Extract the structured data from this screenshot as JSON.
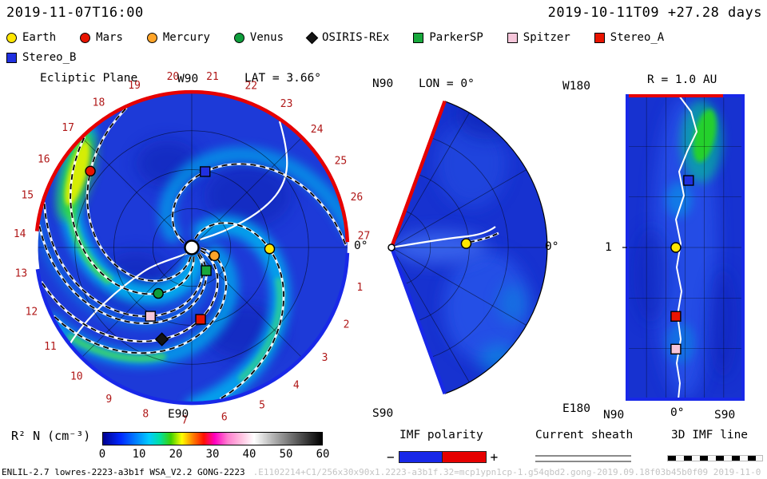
{
  "header": {
    "current_time": "2019-11-07T16:00",
    "start_time": "2019-10-11T09",
    "elapsed": "+27.28 days"
  },
  "legend": {
    "items": [
      {
        "label": "Earth",
        "symbol": "circle",
        "color": "#ffe600"
      },
      {
        "label": "Mars",
        "symbol": "circle",
        "color": "#e81400"
      },
      {
        "label": "Mercury",
        "symbol": "circle",
        "color": "#ffa428"
      },
      {
        "label": "Venus",
        "symbol": "circle",
        "color": "#0f9e3c"
      },
      {
        "label": "OSIRIS-REx",
        "symbol": "diamond",
        "color": "#141414"
      },
      {
        "label": "ParkerSP",
        "symbol": "square",
        "color": "#18a83c"
      },
      {
        "label": "Spitzer",
        "symbol": "square",
        "color": "#f6c6da"
      },
      {
        "label": "Stereo_A",
        "symbol": "square",
        "color": "#e81400"
      },
      {
        "label": "Stereo_B",
        "symbol": "square",
        "color": "#2030e0"
      }
    ]
  },
  "plots": {
    "ecliptic": {
      "title": "Ecliptic Plane",
      "lat_label": "LAT = 3.66°",
      "top_label": "W90",
      "bottom_label": "E90",
      "right_label": "0°"
    },
    "meridional": {
      "top_label": "N90",
      "lon_label": "LON = 0°",
      "bottom_label": "S90",
      "right_label": "0°"
    },
    "radial": {
      "title": "R = 1.0 AU",
      "top_left_label": "W180",
      "bottom_left_label": "E180",
      "x_ticks": [
        "N90",
        "0°",
        "S90"
      ],
      "y_tick": "1"
    }
  },
  "colorbar": {
    "label": "R² N (cm⁻³)",
    "ticks": [
      "0",
      "10",
      "20",
      "30",
      "40",
      "50",
      "60"
    ]
  },
  "annotations": {
    "imf_polarity": {
      "label": "IMF polarity",
      "minus": "−",
      "plus": "+"
    },
    "current_sheath": {
      "label": "Current sheath"
    },
    "imf_line": {
      "label": "3D IMF line"
    }
  },
  "footer": {
    "model_info": "ENLIL-2.7 lowres-2223-a3b1f WSA_V2.2 GONG-2223",
    "run_info": ".E1102214+C1/256x30x90x1.2223-a3b1f.32=mcp1ypn1cp-1.g54qbd2.gong-2019.09.18f03b45b0f09  2019-11-0"
  },
  "chart_data": {
    "type": "heatmap",
    "model": "ENLIL heliospheric solar wind simulation",
    "quantity": "R² N (cm⁻³)",
    "value_range": [
      0,
      60
    ],
    "elapsed_days": 27.28,
    "panels": [
      {
        "id": "ecliptic",
        "title": "Ecliptic Plane",
        "subtitle": "LAT = 3.66°",
        "projection": "polar disk",
        "radius_au": 2.0,
        "angle_ring_unit": "days",
        "axis_labels": [
          "W90",
          "E90",
          "0°"
        ]
      },
      {
        "id": "meridional",
        "title": "LON = 0°",
        "projection": "latitude wedge",
        "lat_range": [
          "N90",
          "S90"
        ],
        "radius_au": 2.0
      },
      {
        "id": "radial",
        "title": "R = 1.0 AU",
        "projection": "lat-lon map",
        "x_range": [
          "N90",
          "S90"
        ],
        "y_range": [
          "W180",
          "E180"
        ]
      }
    ],
    "day_labels": [
      "1",
      "2",
      "3",
      "4",
      "5",
      "6",
      "7",
      "8",
      "9",
      "10",
      "11",
      "12",
      "13",
      "14",
      "15",
      "16",
      "17",
      "18",
      "19",
      "20",
      "21",
      "22",
      "23",
      "24",
      "25",
      "26",
      "27"
    ],
    "colorbar": {
      "range": [
        0,
        60
      ],
      "ticks": [
        0,
        10,
        20,
        30,
        40,
        50,
        60
      ],
      "stops": [
        {
          "v": 0.0,
          "c": "#000090"
        },
        {
          "v": 0.08,
          "c": "#0028ff"
        },
        {
          "v": 0.15,
          "c": "#0080ff"
        },
        {
          "v": 0.21,
          "c": "#00ccff"
        },
        {
          "v": 0.26,
          "c": "#00e0a0"
        },
        {
          "v": 0.31,
          "c": "#40d000"
        },
        {
          "v": 0.36,
          "c": "#ffff00"
        },
        {
          "v": 0.41,
          "c": "#ff8000"
        },
        {
          "v": 0.46,
          "c": "#ff1000"
        },
        {
          "v": 0.51,
          "c": "#ff00c0"
        },
        {
          "v": 0.57,
          "c": "#ff80d0"
        },
        {
          "v": 0.63,
          "c": "#ffc0e0"
        },
        {
          "v": 0.69,
          "c": "#ffffff"
        },
        {
          "v": 0.78,
          "c": "#b0b0b0"
        },
        {
          "v": 1.0,
          "c": "#000000"
        }
      ]
    },
    "imf_polarity_colors": {
      "negative": "#1828e8",
      "positive": "#e60000"
    },
    "bodies": [
      {
        "name": "Sun",
        "symbol": "sun",
        "color": "#ffffff",
        "ecliptic": {
          "r_au": 0.0,
          "lon_deg": 0
        }
      },
      {
        "name": "Earth",
        "symbol": "circle",
        "color": "#ffe600",
        "ecliptic": {
          "r_au": 1.0,
          "lon_deg": -1
        },
        "meridional": {
          "r_au": 0.96,
          "lat_deg": 3
        },
        "radial": {
          "x": 0.42,
          "y": 0.5
        }
      },
      {
        "name": "Mars",
        "symbol": "circle",
        "color": "#e81400",
        "ecliptic": {
          "r_au": 1.63,
          "lon_deg": 143
        }
      },
      {
        "name": "Mercury",
        "symbol": "circle",
        "color": "#ffa428",
        "ecliptic": {
          "r_au": 0.31,
          "lon_deg": -20
        }
      },
      {
        "name": "Venus",
        "symbol": "circle",
        "color": "#0f9e3c",
        "ecliptic": {
          "r_au": 0.73,
          "lon_deg": -126
        }
      },
      {
        "name": "OSIRIS-REx",
        "symbol": "diamond",
        "color": "#141414",
        "ecliptic": {
          "r_au": 1.24,
          "lon_deg": -108
        }
      },
      {
        "name": "ParkerSP",
        "symbol": "square",
        "color": "#18a83c",
        "ecliptic": {
          "r_au": 0.35,
          "lon_deg": -58
        }
      },
      {
        "name": "Spitzer",
        "symbol": "square",
        "color": "#f6c6da",
        "ecliptic": {
          "r_au": 1.03,
          "lon_deg": -121
        },
        "radial": {
          "x": 0.42,
          "y": 0.835
        }
      },
      {
        "name": "Stereo_A",
        "symbol": "square",
        "color": "#e81400",
        "ecliptic": {
          "r_au": 0.93,
          "lon_deg": -83
        },
        "radial": {
          "x": 0.42,
          "y": 0.727
        }
      },
      {
        "name": "Stereo_B",
        "symbol": "square",
        "color": "#2030e0",
        "ecliptic": {
          "r_au": 0.99,
          "lon_deg": 80
        },
        "radial": {
          "x": 0.53,
          "y": 0.279
        }
      }
    ]
  }
}
